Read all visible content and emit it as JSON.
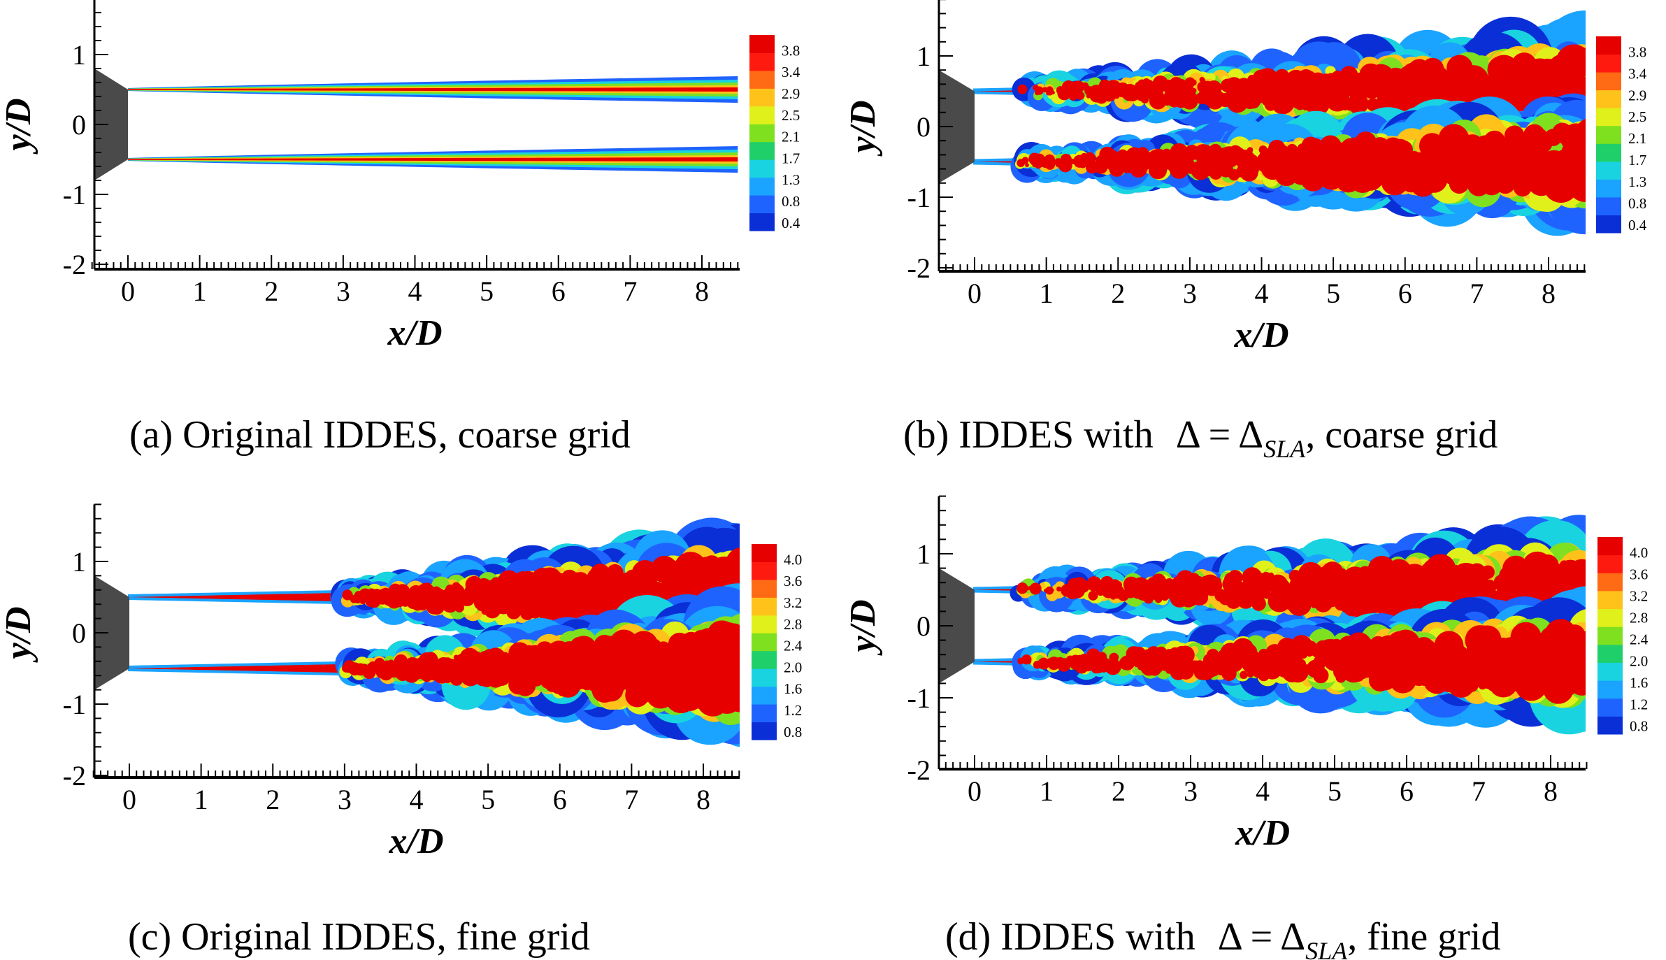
{
  "figure": {
    "panels": [
      {
        "id": "a",
        "caption": {
          "prefix": "(a) Original IDDES, coarse grid",
          "math": "",
          "suffix": ""
        },
        "x_axis": {
          "label": "x/D",
          "ticks": [
            "0",
            "1",
            "2",
            "3",
            "4",
            "5",
            "6",
            "7",
            "8"
          ],
          "range": [
            -0.5,
            8.5
          ]
        },
        "y_axis": {
          "label": "y/D",
          "ticks": [
            "1",
            "0",
            "-1",
            "-2"
          ],
          "range": [
            -2,
            1.8
          ]
        },
        "colorbar": {
          "labels": [
            "3.8",
            "3.4",
            "2.9",
            "2.5",
            "2.1",
            "1.7",
            "1.3",
            "0.8",
            "0.4"
          ],
          "range": [
            0.2,
            4.0
          ]
        },
        "flow": "laminar"
      },
      {
        "id": "b",
        "caption": {
          "prefix": "(b) IDDES with ",
          "math": "SLA",
          "suffix": ", coarse grid"
        },
        "x_axis": {
          "label": "x/D",
          "ticks": [
            "0",
            "1",
            "2",
            "3",
            "4",
            "5",
            "6",
            "7",
            "8"
          ],
          "range": [
            -0.5,
            8.5
          ]
        },
        "y_axis": {
          "label": "y/D",
          "ticks": [
            "1",
            "0",
            "-1",
            "-2"
          ],
          "range": [
            -2,
            1.8
          ]
        },
        "colorbar": {
          "labels": [
            "3.8",
            "3.4",
            "2.9",
            "2.5",
            "2.1",
            "1.7",
            "1.3",
            "0.8",
            "0.4"
          ],
          "range": [
            0.2,
            4.0
          ]
        },
        "flow": "turbulent-early"
      },
      {
        "id": "c",
        "caption": {
          "prefix": "(c) Original IDDES, fine grid",
          "math": "",
          "suffix": ""
        },
        "x_axis": {
          "label": "x/D",
          "ticks": [
            "0",
            "1",
            "2",
            "3",
            "4",
            "5",
            "6",
            "7",
            "8"
          ],
          "range": [
            -0.5,
            8.5
          ]
        },
        "y_axis": {
          "label": "y/D",
          "ticks": [
            "1",
            "0",
            "-1",
            "-2"
          ],
          "range": [
            -2,
            1.8
          ]
        },
        "colorbar": {
          "labels": [
            "4.0",
            "3.6",
            "3.2",
            "2.8",
            "2.4",
            "2.0",
            "1.6",
            "1.2",
            "0.8"
          ],
          "range": [
            0.6,
            4.2
          ]
        },
        "flow": "turbulent-late"
      },
      {
        "id": "d",
        "caption": {
          "prefix": "(d) IDDES with ",
          "math": "SLA",
          "suffix": ", fine grid"
        },
        "x_axis": {
          "label": "x/D",
          "ticks": [
            "0",
            "1",
            "2",
            "3",
            "4",
            "5",
            "6",
            "7",
            "8"
          ],
          "range": [
            -0.5,
            8.5
          ]
        },
        "y_axis": {
          "label": "y/D",
          "ticks": [
            "1",
            "0",
            "-1",
            "-2"
          ],
          "range": [
            -2,
            1.8
          ]
        },
        "colorbar": {
          "labels": [
            "4.0",
            "3.6",
            "3.2",
            "2.8",
            "2.4",
            "2.0",
            "1.6",
            "1.2",
            "0.8"
          ],
          "range": [
            0.6,
            4.2
          ]
        },
        "flow": "turbulent-fine"
      }
    ],
    "palette": [
      "#0a2fd6",
      "#1f63ff",
      "#1aa3ff",
      "#19d3e0",
      "#1fcf6a",
      "#7ee01f",
      "#e0f01a",
      "#ffc21a",
      "#ff6a14",
      "#ff1a10",
      "#e60000"
    ]
  }
}
